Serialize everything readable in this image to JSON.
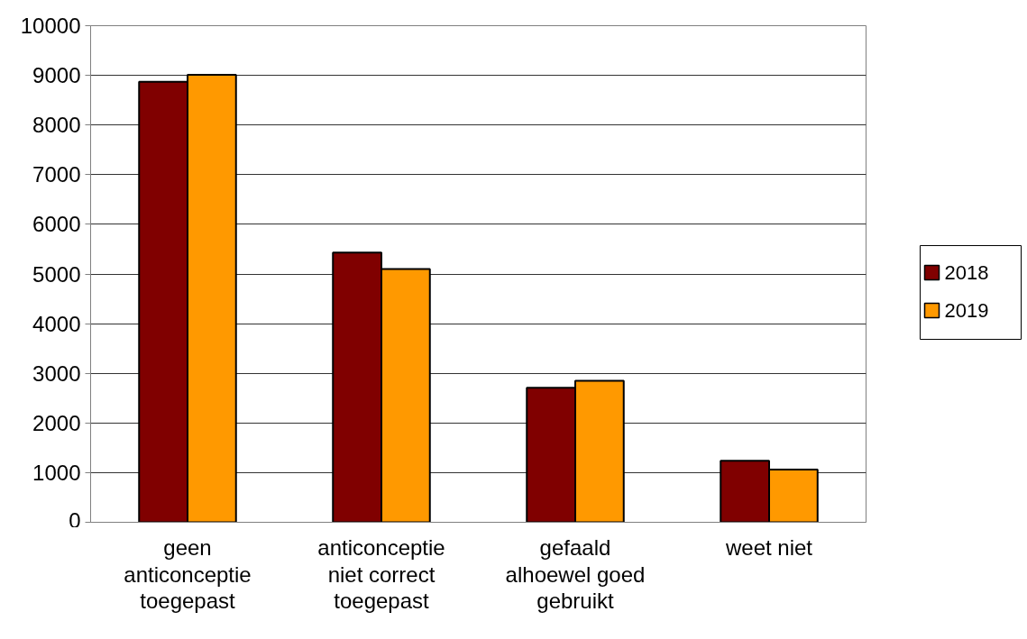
{
  "chart_data": {
    "type": "bar",
    "categories": [
      "geen anticonceptie toegepast",
      "anticonceptie niet correct toegepast",
      "gefaald alhoewel goed gebruikt",
      "weet niet"
    ],
    "series": [
      {
        "name": "2018",
        "color": "#800000",
        "values": [
          8870,
          5430,
          2710,
          1240
        ]
      },
      {
        "name": "2019",
        "color": "#ff9900",
        "values": [
          9010,
          5100,
          2850,
          1060
        ]
      }
    ],
    "ylim": [
      0,
      10000
    ],
    "yticks": [
      0,
      1000,
      2000,
      3000,
      4000,
      5000,
      6000,
      7000,
      8000,
      9000,
      10000
    ],
    "grid": "y",
    "legend": "right"
  }
}
